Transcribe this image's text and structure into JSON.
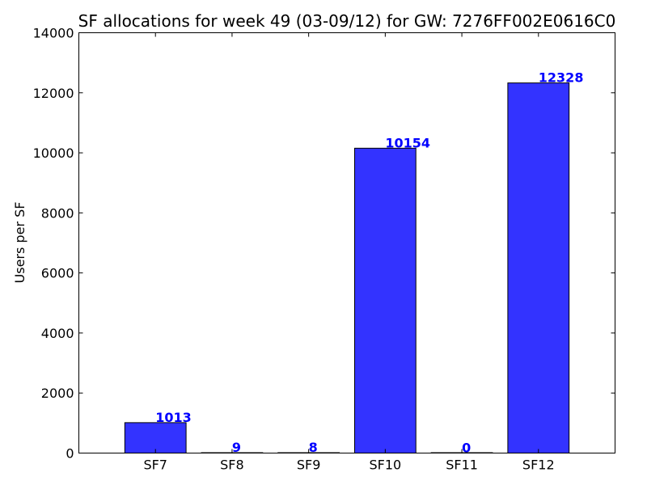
{
  "chart_data": {
    "type": "bar",
    "title": "SF allocations for week 49 (03-09/12) for GW: 7276FF002E0616C0",
    "xlabel": "",
    "ylabel": "Users per SF",
    "categories": [
      "SF7",
      "SF8",
      "SF9",
      "SF10",
      "SF11",
      "SF12"
    ],
    "values": [
      1013,
      9,
      8,
      10154,
      0,
      12328
    ],
    "data_labels": [
      "1013",
      "9",
      "8",
      "10154",
      "0",
      "12328"
    ],
    "ylim": [
      0,
      14000
    ],
    "yticks": [
      0,
      2000,
      4000,
      6000,
      8000,
      10000,
      12000,
      14000
    ],
    "ytick_labels": [
      "0",
      "2000",
      "4000",
      "6000",
      "8000",
      "10000",
      "12000",
      "14000"
    ],
    "grid": false,
    "colors": {
      "bar": "#3333ff",
      "bar_edge": "#000000",
      "data_label": "#0000ff"
    }
  }
}
